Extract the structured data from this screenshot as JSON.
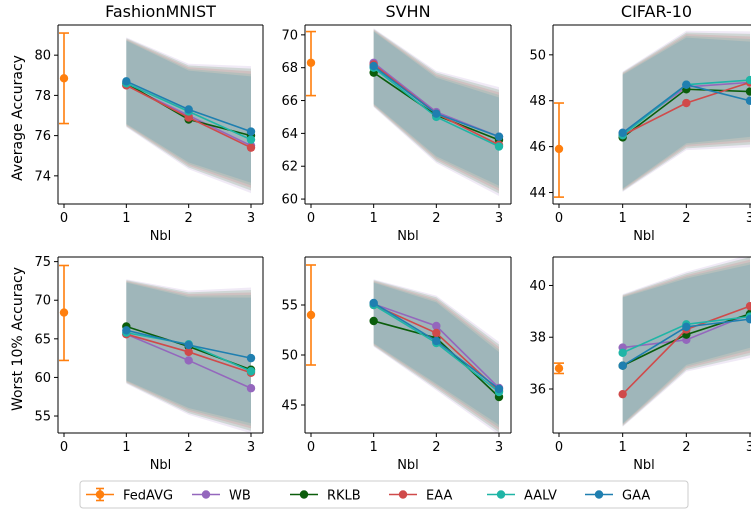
{
  "legend": [
    {
      "name": "FedAVG",
      "color": "#ff7f0e",
      "style": "errorbar"
    },
    {
      "name": "WB",
      "color": "#9467bd"
    },
    {
      "name": "RKLB",
      "color": "#0b5d0b"
    },
    {
      "name": "EAA",
      "color": "#d04a4a"
    },
    {
      "name": "AALV",
      "color": "#1fb5a6"
    },
    {
      "name": "GAA",
      "color": "#1f7fb0"
    }
  ],
  "row_ylabels": [
    "Average Accuracy",
    "Worst 10% Accuracy"
  ],
  "chart_data": [
    {
      "type": "line",
      "title": "FashionMNIST",
      "xlabel": "Nbl",
      "ylabel": "Average Accuracy",
      "ylim": [
        72.6,
        81.5
      ],
      "yticks": [
        74,
        76,
        78,
        80
      ],
      "xticks": [
        0,
        1,
        2,
        3
      ],
      "fedavg": {
        "x": 0,
        "y": 78.85,
        "err": [
          76.6,
          81.1
        ]
      },
      "band": {
        "lo": [
          76.5,
          74.5,
          73.4
        ],
        "hi": [
          80.8,
          79.4,
          79.2
        ]
      },
      "series": [
        {
          "name": "WB",
          "values": [
            78.5,
            77.0,
            75.5
          ]
        },
        {
          "name": "RKLB",
          "values": [
            78.6,
            76.8,
            76.0
          ]
        },
        {
          "name": "EAA",
          "values": [
            78.5,
            76.9,
            75.4
          ]
        },
        {
          "name": "AALV",
          "values": [
            78.6,
            77.2,
            75.8
          ]
        },
        {
          "name": "GAA",
          "values": [
            78.7,
            77.3,
            76.2
          ]
        }
      ]
    },
    {
      "type": "line",
      "title": "SVHN",
      "xlabel": "Nbl",
      "ylabel": "",
      "ylim": [
        59.7,
        70.6
      ],
      "yticks": [
        60,
        62,
        64,
        66,
        68,
        70
      ],
      "xticks": [
        0,
        1,
        2,
        3
      ],
      "fedavg": {
        "x": 0,
        "y": 68.3,
        "err": [
          66.3,
          70.2
        ]
      },
      "band": {
        "lo": [
          65.7,
          62.4,
          60.5
        ],
        "hi": [
          70.3,
          67.6,
          66.5
        ]
      },
      "series": [
        {
          "name": "WB",
          "values": [
            68.3,
            65.3,
            63.8
          ]
        },
        {
          "name": "RKLB",
          "values": [
            67.7,
            65.1,
            63.6
          ]
        },
        {
          "name": "EAA",
          "values": [
            68.2,
            65.2,
            63.3
          ]
        },
        {
          "name": "AALV",
          "values": [
            68.0,
            65.0,
            63.2
          ]
        },
        {
          "name": "GAA",
          "values": [
            68.1,
            65.2,
            63.8
          ]
        }
      ]
    },
    {
      "type": "line",
      "title": "CIFAR-10",
      "xlabel": "Nbl",
      "ylabel": "",
      "ylim": [
        43.5,
        51.3
      ],
      "yticks": [
        44,
        46,
        48,
        50
      ],
      "xticks": [
        0,
        1,
        2,
        3
      ],
      "fedavg": {
        "x": 0,
        "y": 45.9,
        "err": [
          43.8,
          47.9
        ]
      },
      "band": {
        "lo": [
          44.1,
          46.0,
          46.2
        ],
        "hi": [
          49.2,
          50.9,
          50.8
        ]
      },
      "series": [
        {
          "name": "WB",
          "values": [
            46.6,
            48.6,
            48.8
          ]
        },
        {
          "name": "RKLB",
          "values": [
            46.4,
            48.5,
            48.4
          ]
        },
        {
          "name": "EAA",
          "values": [
            46.5,
            47.9,
            48.8
          ]
        },
        {
          "name": "AALV",
          "values": [
            46.5,
            48.7,
            48.9
          ]
        },
        {
          "name": "GAA",
          "values": [
            46.6,
            48.7,
            48.0
          ]
        }
      ]
    },
    {
      "type": "line",
      "title": "",
      "xlabel": "Nbl",
      "ylabel": "Worst 10% Accuracy",
      "ylim": [
        52.8,
        75.6
      ],
      "yticks": [
        55,
        60,
        65,
        70,
        75
      ],
      "xticks": [
        0,
        1,
        2,
        3
      ],
      "fedavg": {
        "x": 0,
        "y": 68.4,
        "err": [
          62.2,
          74.5
        ]
      },
      "band": {
        "lo": [
          59.4,
          55.6,
          53.4
        ],
        "hi": [
          72.5,
          70.8,
          71.0
        ]
      },
      "series": [
        {
          "name": "WB",
          "values": [
            65.6,
            62.2,
            58.6
          ]
        },
        {
          "name": "RKLB",
          "values": [
            66.6,
            64.0,
            61.0
          ]
        },
        {
          "name": "EAA",
          "values": [
            65.6,
            63.3,
            60.6
          ]
        },
        {
          "name": "AALV",
          "values": [
            65.8,
            64.3,
            60.8
          ]
        },
        {
          "name": "GAA",
          "values": [
            66.1,
            64.2,
            62.5
          ]
        }
      ]
    },
    {
      "type": "line",
      "title": "",
      "xlabel": "Nbl",
      "ylabel": "",
      "ylim": [
        42.2,
        59.8
      ],
      "yticks": [
        45,
        50,
        55
      ],
      "xticks": [
        0,
        1,
        2,
        3
      ],
      "fedavg": {
        "x": 0,
        "y": 54.0,
        "err": [
          49.0,
          59.0
        ]
      },
      "band": {
        "lo": [
          51.0,
          46.8,
          42.5
        ],
        "hi": [
          57.4,
          55.6,
          50.8
        ]
      },
      "series": [
        {
          "name": "WB",
          "values": [
            55.1,
            52.9,
            46.7
          ]
        },
        {
          "name": "RKLB",
          "values": [
            53.4,
            51.7,
            45.8
          ]
        },
        {
          "name": "EAA",
          "values": [
            55.0,
            52.2,
            46.4
          ]
        },
        {
          "name": "AALV",
          "values": [
            55.0,
            51.2,
            46.3
          ]
        },
        {
          "name": "GAA",
          "values": [
            55.2,
            51.4,
            46.6
          ]
        }
      ]
    },
    {
      "type": "line",
      "title": "",
      "xlabel": "Nbl",
      "ylabel": "",
      "ylim": [
        34.3,
        41.1
      ],
      "yticks": [
        36,
        38,
        40
      ],
      "xticks": [
        0,
        1,
        2,
        3
      ],
      "fedavg": {
        "x": 0,
        "y": 36.8,
        "err": [
          36.6,
          37.0
        ]
      },
      "band": {
        "lo": [
          34.6,
          36.8,
          37.4
        ],
        "hi": [
          39.6,
          40.4,
          41.0
        ]
      },
      "series": [
        {
          "name": "WB",
          "values": [
            37.6,
            37.9,
            38.9
          ]
        },
        {
          "name": "RKLB",
          "values": [
            36.9,
            38.1,
            38.9
          ]
        },
        {
          "name": "EAA",
          "values": [
            35.8,
            38.3,
            39.2
          ]
        },
        {
          "name": "AALV",
          "values": [
            37.4,
            38.5,
            38.8
          ]
        },
        {
          "name": "GAA",
          "values": [
            36.9,
            38.4,
            38.7
          ]
        }
      ]
    }
  ]
}
